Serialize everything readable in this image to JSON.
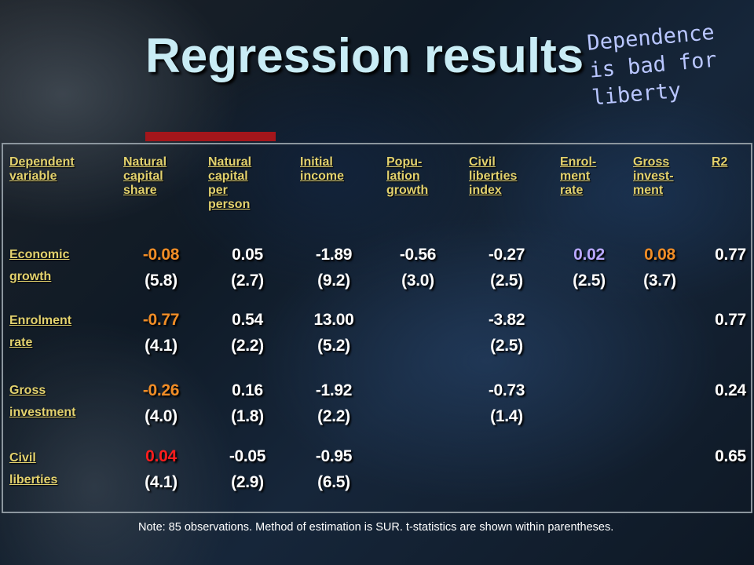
{
  "slide": {
    "title": "Regression results",
    "annotation": [
      "Dependence",
      "is bad for",
      "liberty"
    ],
    "note": "Note: 85 observations. Method of estimation is SUR. t-statistics are shown within parentheses."
  },
  "colors": {
    "header_text": "#e3d26e",
    "title": "#c9ecf5",
    "accent_bar": "#a4161b",
    "highlight_orange": "#f18d26",
    "highlight_red": "#ff1d1d",
    "highlight_lilac": "#b9a8ff"
  },
  "table": {
    "headers": [
      [
        "Dependent",
        "variable"
      ],
      [
        "Natural",
        "capital",
        "share"
      ],
      [
        "Natural",
        "capital",
        "per",
        "person"
      ],
      [
        "Initial",
        "income"
      ],
      [
        "Popu-",
        "lation",
        "growth"
      ],
      [
        "Civil",
        "liberties",
        "index"
      ],
      [
        "Enrol-",
        "ment",
        "rate"
      ],
      [
        "Gross",
        "invest-",
        "ment"
      ],
      [
        "R2"
      ]
    ],
    "rows": [
      {
        "label": [
          "Economic",
          "growth"
        ],
        "coef": [
          "-0.08",
          "0.05",
          "-1.89",
          "-0.56",
          "-0.27",
          "0.02",
          "0.08"
        ],
        "tstat": [
          "(5.8)",
          "(2.7)",
          "(9.2)",
          "(3.0)",
          "(2.5)",
          "(2.5)",
          "(3.7)"
        ],
        "r2": "0.77"
      },
      {
        "label": [
          "Enrolment",
          "rate"
        ],
        "coef": [
          "-0.77",
          "0.54",
          "13.00",
          "",
          "-3.82",
          "",
          ""
        ],
        "tstat": [
          "(4.1)",
          "(2.2)",
          "(5.2)",
          "",
          "(2.5)",
          "",
          ""
        ],
        "r2": "0.77"
      },
      {
        "label": [
          "Gross",
          "investment"
        ],
        "coef": [
          "-0.26",
          "0.16",
          "-1.92",
          "",
          "-0.73",
          "",
          ""
        ],
        "tstat": [
          "(4.0)",
          "(1.8)",
          "(2.2)",
          "",
          "(1.4)",
          "",
          ""
        ],
        "r2": "0.24"
      },
      {
        "label": [
          "Civil",
          "liberties"
        ],
        "coef": [
          "0.04",
          "-0.05",
          "-0.95",
          "",
          "",
          "",
          ""
        ],
        "tstat": [
          "(4.1)",
          "(2.9)",
          "(6.5)",
          "",
          "",
          "",
          ""
        ],
        "r2": "0.65"
      }
    ],
    "highlights": {
      "0": {
        "0": "orange",
        "5": "lilac",
        "6": "orange"
      },
      "1": {
        "0": "orange"
      },
      "2": {
        "0": "orange"
      },
      "3": {
        "0": "red"
      }
    }
  }
}
